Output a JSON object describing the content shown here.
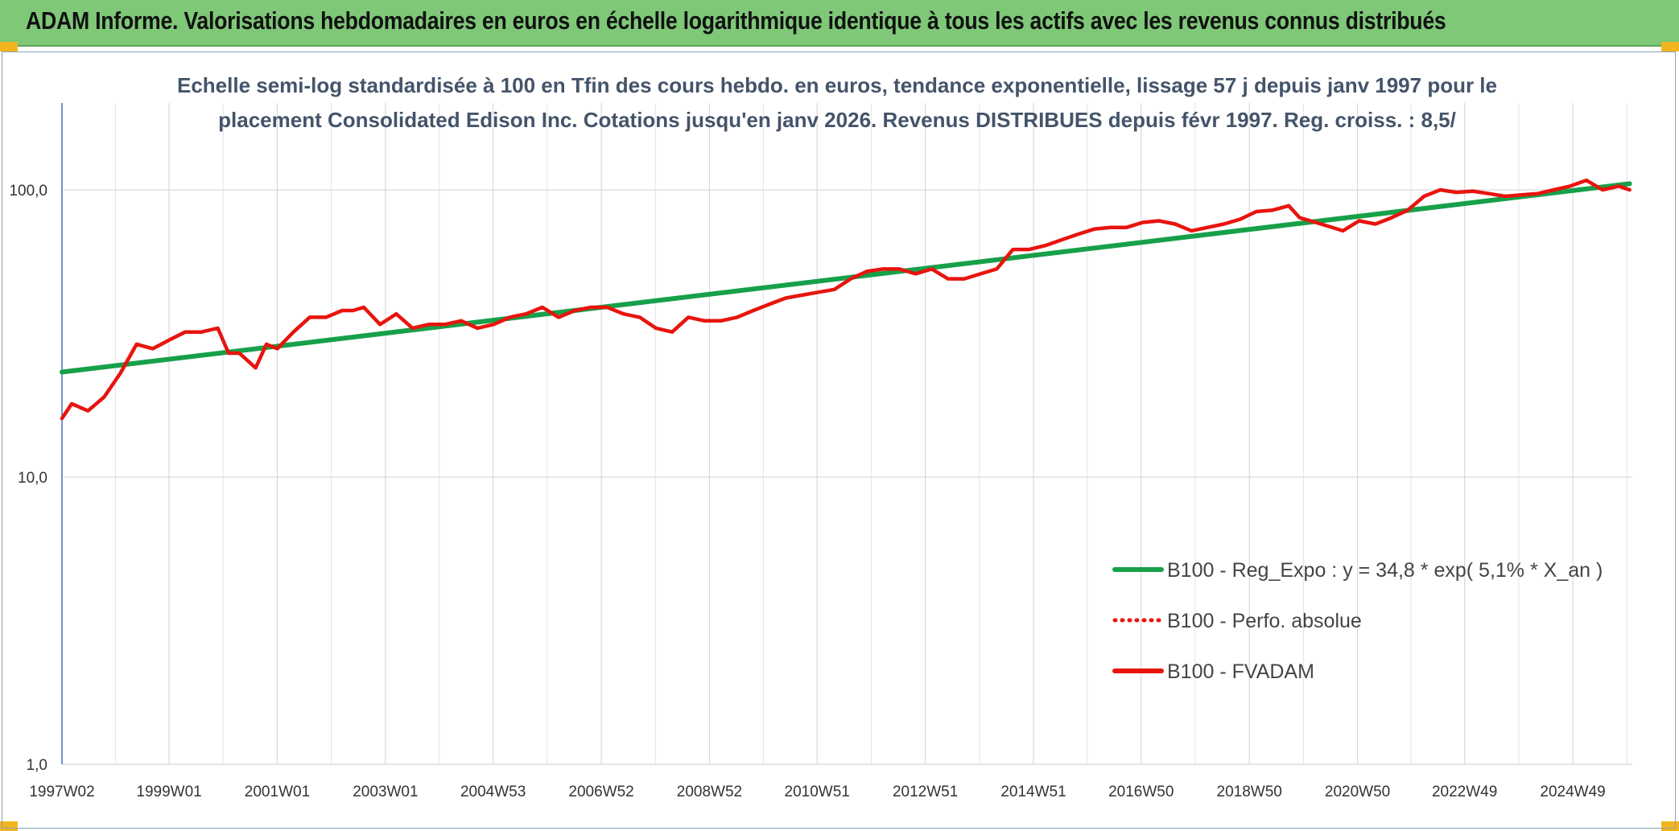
{
  "page": {
    "banner_title": "ADAM Informe. Valorisations hebdomadaires en euros en échelle logarithmique identique à tous les actifs avec les revenus connus distribués",
    "banner_color": "#7ec878",
    "accent_color": "#f2b51d"
  },
  "chart_data": {
    "type": "line",
    "title_lines": [
      "Echelle semi-log standardisée à 100 en Tfin des cours hebdo. en euros, tendance exponentielle, lissage 57 j depuis janv 1997 pour le",
      "placement Consolidated Edison Inc. Cotations jusqu'en janv 2026. Revenus DISTRIBUES depuis févr 1997. Reg. croiss. : 8,5/"
    ],
    "y_scale": "log",
    "ylim": [
      1,
      200
    ],
    "yticks": [
      {
        "value": 1,
        "label": "1,0"
      },
      {
        "value": 10,
        "label": "10,0"
      },
      {
        "value": 100,
        "label": "100,0"
      }
    ],
    "xlim": [
      1997.02,
      2026.05
    ],
    "xticks": [
      {
        "value": 1997.02,
        "label": "1997W02"
      },
      {
        "value": 1999.0,
        "label": "1999W01"
      },
      {
        "value": 2001.0,
        "label": "2001W01"
      },
      {
        "value": 2003.0,
        "label": "2003W01"
      },
      {
        "value": 2004.99,
        "label": "2004W53"
      },
      {
        "value": 2006.99,
        "label": "2006W52"
      },
      {
        "value": 2008.99,
        "label": "2008W52"
      },
      {
        "value": 2010.98,
        "label": "2010W51"
      },
      {
        "value": 2012.98,
        "label": "2012W51"
      },
      {
        "value": 2014.98,
        "label": "2014W51"
      },
      {
        "value": 2016.97,
        "label": "2016W50"
      },
      {
        "value": 2018.97,
        "label": "2018W50"
      },
      {
        "value": 2020.97,
        "label": "2020W50"
      },
      {
        "value": 2022.95,
        "label": "2022W49"
      },
      {
        "value": 2024.95,
        "label": "2024W49"
      }
    ],
    "legend": {
      "placement": "right-middle",
      "entries": [
        {
          "label": "B100 - Reg_Expo : y = 34,8 * exp( 5,1% *  X_an )",
          "color": "#17a04a",
          "style": "solid"
        },
        {
          "label": "B100 - Perfo. absolue",
          "color": "#e8140e",
          "style": "dotted"
        },
        {
          "label": "B100 - FVADAM",
          "color": "#e8140e",
          "style": "solid"
        }
      ]
    },
    "series": [
      {
        "name": "B100 - Reg_Expo",
        "color": "#17a04a",
        "x": [
          1997.02,
          2026.0
        ],
        "y": [
          23.2,
          105.0
        ]
      },
      {
        "name": "B100 - FVADAM",
        "color": "#e8140e",
        "x": [
          1997.02,
          1997.2,
          1997.5,
          1997.8,
          1998.1,
          1998.4,
          1998.7,
          1999.0,
          1999.3,
          1999.6,
          1999.9,
          2000.1,
          2000.3,
          2000.6,
          2000.8,
          2001.0,
          2001.3,
          2001.6,
          2001.9,
          2002.2,
          2002.4,
          2002.6,
          2002.9,
          2003.2,
          2003.5,
          2003.8,
          2004.1,
          2004.4,
          2004.7,
          2005.0,
          2005.3,
          2005.6,
          2005.9,
          2006.2,
          2006.5,
          2006.8,
          2007.1,
          2007.4,
          2007.7,
          2008.0,
          2008.3,
          2008.6,
          2008.9,
          2009.2,
          2009.5,
          2009.8,
          2010.1,
          2010.4,
          2010.7,
          2011.0,
          2011.3,
          2011.6,
          2011.9,
          2012.2,
          2012.5,
          2012.8,
          2013.1,
          2013.4,
          2013.7,
          2014.0,
          2014.3,
          2014.6,
          2014.9,
          2015.2,
          2015.5,
          2015.8,
          2016.1,
          2016.4,
          2016.7,
          2017.0,
          2017.3,
          2017.6,
          2017.9,
          2018.2,
          2018.5,
          2018.8,
          2019.1,
          2019.4,
          2019.7,
          2019.9,
          2020.2,
          2020.4,
          2020.7,
          2021.0,
          2021.3,
          2021.6,
          2021.9,
          2022.2,
          2022.5,
          2022.8,
          2023.1,
          2023.4,
          2023.7,
          2024.0,
          2024.3,
          2024.6,
          2024.9,
          2025.2,
          2025.5,
          2025.8,
          2026.0
        ],
        "y": [
          16.0,
          18.0,
          17.0,
          19.0,
          23.0,
          29.0,
          28.0,
          30.0,
          32.0,
          32.0,
          33.0,
          27.0,
          27.0,
          24.0,
          29.0,
          28.0,
          32.0,
          36.0,
          36.0,
          38.0,
          38.0,
          39.0,
          34.0,
          37.0,
          33.0,
          34.0,
          34.0,
          35.0,
          33.0,
          34.0,
          36.0,
          37.0,
          39.0,
          36.0,
          38.0,
          39.0,
          39.0,
          37.0,
          36.0,
          33.0,
          32.0,
          36.0,
          35.0,
          35.0,
          36.0,
          38.0,
          40.0,
          42.0,
          43.0,
          44.0,
          45.0,
          49.0,
          52.0,
          53.0,
          53.0,
          51.0,
          53.0,
          49.0,
          49.0,
          51.0,
          53.0,
          62.0,
          62.0,
          64.0,
          67.0,
          70.0,
          73.0,
          74.0,
          74.0,
          77.0,
          78.0,
          76.0,
          72.0,
          74.0,
          76.0,
          79.0,
          84.0,
          85.0,
          88.0,
          80.0,
          77.0,
          75.0,
          72.0,
          78.0,
          76.0,
          80.0,
          85.0,
          95.0,
          100.0,
          98.0,
          99.0,
          97.0,
          95.0,
          96.0,
          97.0,
          100.0,
          103.0,
          108.0,
          100.0,
          103.0,
          100.0
        ]
      }
    ]
  }
}
